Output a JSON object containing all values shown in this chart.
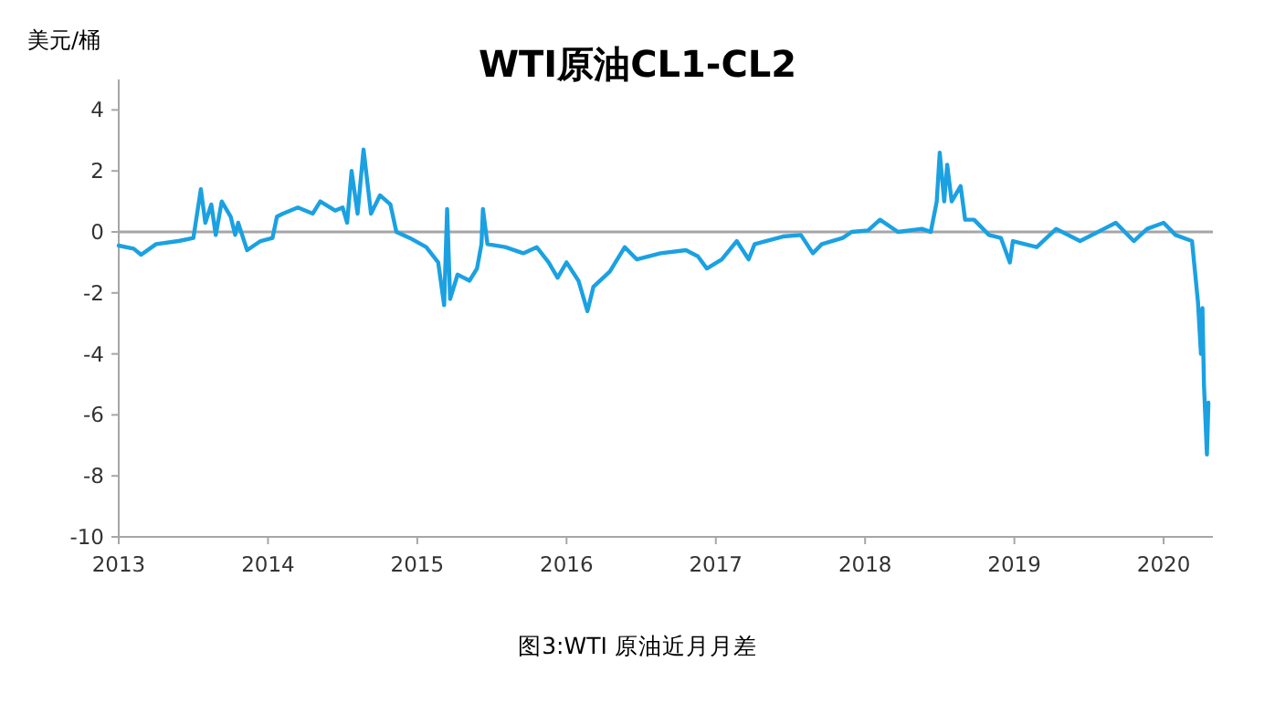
{
  "chart_data": {
    "type": "line",
    "title": "WTI原油CL1-CL2",
    "ylabel": "美元/桶",
    "annotations": [
      "图3:WTI 原油近月月差"
    ],
    "xlim": [
      2013,
      2020.33
    ],
    "xticks": [
      2013,
      2014,
      2015,
      2016,
      2017,
      2018,
      2019,
      2020
    ],
    "ylim": [
      -10,
      5
    ],
    "yticks": [
      -10,
      -8,
      -6,
      -4,
      -2,
      0,
      2,
      4
    ],
    "ref_lines": [
      {
        "axis": "y",
        "value": 0,
        "color": "#a6a6a6"
      }
    ],
    "grid": false,
    "marker": "none",
    "line_style": "solid",
    "series": [
      {
        "color": "#1ba1e2",
        "x": [
          2013.0,
          2013.1,
          2013.15,
          2013.25,
          2013.4,
          2013.5,
          2013.55,
          2013.58,
          2013.62,
          2013.65,
          2013.69,
          2013.75,
          2013.78,
          2013.8,
          2013.86,
          2013.95,
          2014.03,
          2014.06,
          2014.1,
          2014.2,
          2014.3,
          2014.35,
          2014.45,
          2014.5,
          2014.53,
          2014.56,
          2014.6,
          2014.64,
          2014.69,
          2014.75,
          2014.82,
          2014.86,
          2014.95,
          2015.06,
          2015.14,
          2015.18,
          2015.2,
          2015.22,
          2015.27,
          2015.35,
          2015.4,
          2015.43,
          2015.44,
          2015.47,
          2015.59,
          2015.71,
          2015.8,
          2015.88,
          2015.94,
          2016.0,
          2016.08,
          2016.14,
          2016.18,
          2016.29,
          2016.39,
          2016.47,
          2016.63,
          2016.8,
          2016.88,
          2016.94,
          2017.04,
          2017.14,
          2017.22,
          2017.26,
          2017.45,
          2017.57,
          2017.65,
          2017.71,
          2017.85,
          2017.91,
          2018.02,
          2018.1,
          2018.22,
          2018.38,
          2018.44,
          2018.48,
          2018.5,
          2018.53,
          2018.55,
          2018.58,
          2018.64,
          2018.67,
          2018.73,
          2018.83,
          2018.91,
          2018.97,
          2018.99,
          2019.15,
          2019.28,
          2019.44,
          2019.6,
          2019.68,
          2019.8,
          2019.89,
          2020.0,
          2020.08,
          2020.19,
          2020.23,
          2020.25,
          2020.26,
          2020.27,
          2020.29,
          2020.3
        ],
        "values": [
          -0.45,
          -0.55,
          -0.75,
          -0.4,
          -0.3,
          -0.2,
          1.4,
          0.3,
          0.9,
          -0.1,
          1.0,
          0.5,
          -0.1,
          0.3,
          -0.6,
          -0.3,
          -0.2,
          0.5,
          0.6,
          0.8,
          0.6,
          1.0,
          0.7,
          0.8,
          0.3,
          2.0,
          0.6,
          2.7,
          0.6,
          1.2,
          0.9,
          0.0,
          -0.2,
          -0.5,
          -1.0,
          -2.4,
          0.75,
          -2.2,
          -1.4,
          -1.6,
          -1.2,
          -0.4,
          0.75,
          -0.4,
          -0.5,
          -0.7,
          -0.5,
          -1.0,
          -1.5,
          -1.0,
          -1.6,
          -2.6,
          -1.8,
          -1.3,
          -0.5,
          -0.9,
          -0.7,
          -0.6,
          -0.8,
          -1.2,
          -0.9,
          -0.3,
          -0.9,
          -0.4,
          -0.15,
          -0.1,
          -0.7,
          -0.4,
          -0.2,
          0.0,
          0.05,
          0.4,
          0.0,
          0.1,
          0.0,
          1.0,
          2.6,
          1.0,
          2.2,
          1.0,
          1.5,
          0.4,
          0.4,
          -0.1,
          -0.2,
          -1.0,
          -0.3,
          -0.5,
          0.1,
          -0.3,
          0.1,
          0.3,
          -0.3,
          0.1,
          0.3,
          -0.1,
          -0.3,
          -2.3,
          -4.0,
          -2.5,
          -5.0,
          -7.3,
          -5.6
        ]
      }
    ]
  }
}
